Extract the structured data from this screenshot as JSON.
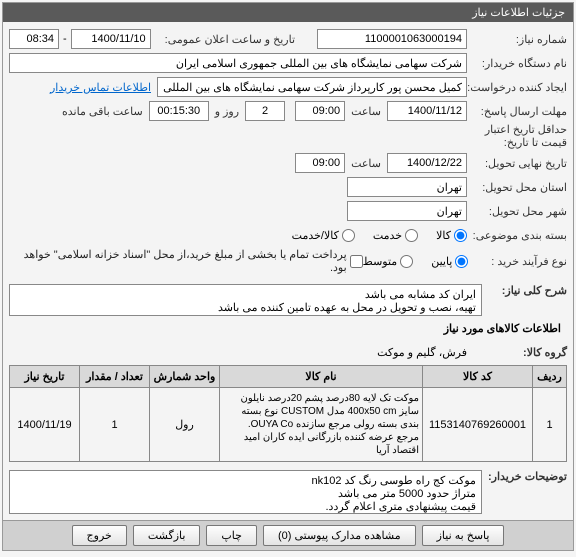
{
  "panel_title": "جزئیات اطلاعات نیاز",
  "labels": {
    "request_no": "شماره نیاز:",
    "public_date": "تاریخ و ساعت اعلان عمومی:",
    "buyer_org": "نام دستگاه خریدار:",
    "request_creator": "ایجاد کننده درخواست:",
    "reply_deadline": "مهلت ارسال پاسخ:",
    "at_time": "ساعت",
    "day_and": "روز و",
    "time_remaining": "ساعت باقی مانده",
    "credit_valid": "حداقل تاریخ اعتبار",
    "price_until": "قیمت تا تاریخ:",
    "delivery_date": "تاریخ نهایی تحویل:",
    "delivery_state": "استان محل تحویل:",
    "delivery_city": "شهر محل تحویل:",
    "subject_pack": "بسته بندی موضوعی:",
    "purchase_type": "نوع فرآیند خرید :",
    "desc_title": "شرح کلی نیاز:",
    "items_info": "اطلاعات کالاهای مورد نیاز",
    "goods_group": "گروه کالا:",
    "buyer_notes": "توضیحات خریدار:",
    "contact_link": "اطلاعات تماس خریدار"
  },
  "values": {
    "request_no": "1100001063000194",
    "public_date_date": "1400/11/10",
    "public_date_time": "08:34",
    "buyer_org": "شرکت سهامی نمایشگاه های بین المللی جمهوری اسلامی ایران",
    "request_creator": "کمیل محسن پور کارپرداز شرکت سهامی نمایشگاه های بین المللی جمهوری اس",
    "reply_date": "1400/11/12",
    "reply_time": "09:00",
    "days_left": "2",
    "time_left": "00:15:30",
    "delivery_date": "1400/12/22",
    "delivery_time": "09:00",
    "state": "تهران",
    "city": "تهران",
    "subject_goods": "کالا",
    "subject_service": "خدمت",
    "subject_both": "کالا/خدمت",
    "proc_low": "پایین",
    "proc_mid": "متوسط",
    "payment_note": "پرداخت تمام یا بخشی از مبلغ خرید،از محل \"اسناد خزانه اسلامی\" خواهد بود.",
    "desc_text": "ایران کد مشابه می باشد\nتهیه، نصب و تحویل در محل به عهده تامین کننده می باشد",
    "goods_group": "فرش، گلیم و موکت",
    "buyer_notes": "موکت کج راه طوسی رنگ کد nk102\nمتراژ حدود 5000 متر می باشد\nقیمت پیشنهادی متری اعلام گردد."
  },
  "table": {
    "headers": {
      "row": "ردیف",
      "code": "کد کالا",
      "name": "نام کالا",
      "unit": "واحد شمارش",
      "qty": "تعداد / مقدار",
      "date": "تاریخ نیاز"
    },
    "rows": [
      {
        "row": "1",
        "code": "1153140769260001",
        "name": "موکت تک لایه 80درصد پشم 20درصد نایلون سایز 400x50 cm مدل CUSTOM نوع بسته بندی بسته رولی مرجع سازنده OUYA Co. مرجع عرضه کننده بازرگانی ایده کاران امید اقتصاد آریا",
        "unit": "رول",
        "qty": "1",
        "date": "1400/11/19"
      }
    ]
  },
  "buttons": {
    "reply": "پاسخ به نیاز",
    "attachments": "مشاهده مدارک پیوستی (0)",
    "print": "چاپ",
    "back": "بازگشت",
    "exit": "خروج"
  }
}
